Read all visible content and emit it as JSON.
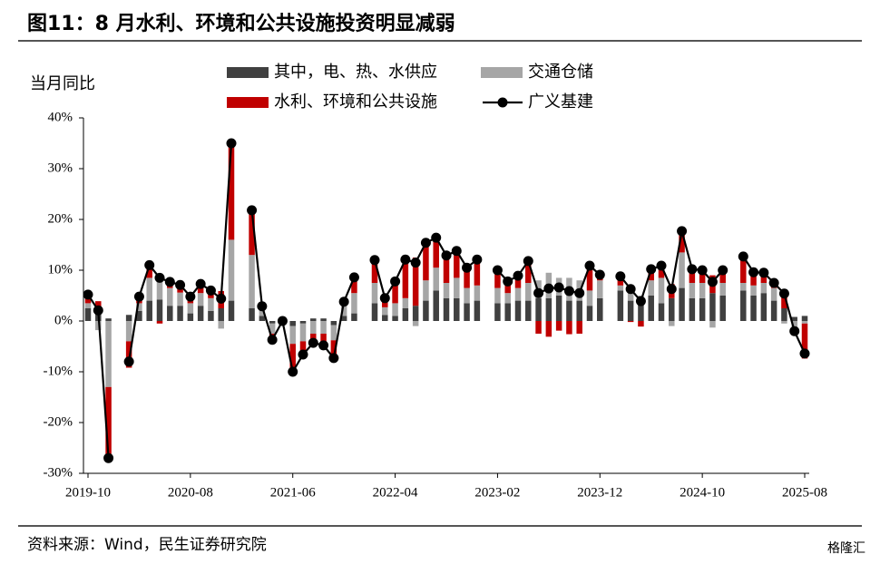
{
  "chart_data": {
    "type": "bar",
    "title": "图11：8 月水利、环境和公共设施投资明显减弱",
    "y_label": "当月同比",
    "source": "资料来源：Wind，民生证券研究院",
    "watermark": "格隆汇",
    "stacked": true,
    "grid": false,
    "categories": [
      "2019-10",
      null,
      null,
      null,
      null,
      null,
      null,
      null,
      null,
      null,
      "2020-08",
      null,
      null,
      null,
      null,
      null,
      null,
      null,
      null,
      null,
      "2021-06",
      null,
      null,
      null,
      null,
      null,
      null,
      null,
      null,
      null,
      "2022-04",
      null,
      null,
      null,
      null,
      null,
      null,
      null,
      null,
      null,
      "2023-02",
      null,
      null,
      null,
      null,
      null,
      null,
      null,
      null,
      null,
      "2023-12",
      null,
      null,
      null,
      null,
      null,
      null,
      null,
      null,
      null,
      "2024-10",
      null,
      null,
      null,
      null,
      null,
      null,
      null,
      null,
      null,
      "2025-08"
    ],
    "ylim": [
      -30,
      40
    ],
    "yticks": [
      {
        "value": -30,
        "label": "-30%"
      },
      {
        "value": -20,
        "label": "-20%"
      },
      {
        "value": -10,
        "label": "-10%"
      },
      {
        "value": 0,
        "label": "0%"
      },
      {
        "value": 10,
        "label": "10%"
      },
      {
        "value": 20,
        "label": "20%"
      },
      {
        "value": 30,
        "label": "30%"
      },
      {
        "value": 40,
        "label": "40%"
      }
    ],
    "series": [
      {
        "name": "其中，电、热、水供应",
        "color": "#404040",
        "type": "bar",
        "values": [
          2.5,
          1.5,
          0.5,
          null,
          1.2,
          2,
          4,
          4.2,
          3,
          3,
          1.5,
          3,
          2,
          2.5,
          4,
          null,
          2.5,
          1,
          -0.5,
          0.5,
          -1,
          -0.5,
          0.5,
          0.5,
          -0.8,
          1,
          1.5,
          null,
          3.5,
          1.2,
          1,
          2.5,
          3,
          4,
          6,
          4.5,
          4.5,
          3.5,
          4,
          null,
          3.5,
          3.5,
          4,
          4,
          4.5,
          4.5,
          5,
          4,
          4,
          3,
          4.5,
          null,
          6,
          4,
          3.5,
          5,
          3.5,
          4.5,
          6.5,
          4.5,
          4.5,
          5.5,
          5,
          null,
          6,
          5,
          5.5,
          4,
          2.5,
          0.8,
          1.0
        ]
      },
      {
        "name": "交通仓储",
        "color": "#a6a6a6",
        "type": "bar",
        "values": [
          1,
          -1.8,
          -13,
          null,
          -4,
          1.5,
          4.5,
          4.8,
          3.5,
          2.6,
          2,
          2.5,
          2.5,
          -1.5,
          12,
          null,
          10.5,
          1.2,
          -2,
          -0.5,
          -3.5,
          -3.5,
          -2.5,
          -2.5,
          -3,
          2,
          4,
          null,
          4,
          1.5,
          2.5,
          2,
          -1,
          4,
          4.5,
          3,
          4,
          3,
          3,
          null,
          3,
          2,
          2.5,
          3.5,
          3.5,
          5,
          3.5,
          4.5,
          4,
          3,
          3.5,
          null,
          1,
          2.5,
          1.5,
          3,
          5,
          -1,
          7,
          3,
          3,
          -1.3,
          2.5,
          null,
          1.5,
          2,
          2,
          2.5,
          -0.5,
          -1.5,
          -0.5
        ]
      },
      {
        "name": "水利、环境和公共设施",
        "color": "#c00000",
        "type": "bar",
        "values": [
          1.7,
          2.4,
          -14.5,
          null,
          -5.2,
          1.3,
          2.5,
          -0.5,
          1.2,
          1.5,
          1.3,
          1.8,
          1.5,
          3.4,
          19,
          null,
          8.8,
          0.7,
          -1.2,
          0,
          -5.5,
          -2.6,
          -2.3,
          -2.8,
          -3.5,
          0.8,
          3.1,
          null,
          4.5,
          1.8,
          4.3,
          7.6,
          9.5,
          7.4,
          5.9,
          5.4,
          5.3,
          4.0,
          5.1,
          null,
          3.5,
          2.3,
          2.4,
          4.3,
          -2.5,
          -3.1,
          -1.9,
          -2.6,
          -2.5,
          4.9,
          1.1,
          null,
          1.8,
          -0.2,
          -1.1,
          2.2,
          2.4,
          2.8,
          4.2,
          2.7,
          2.5,
          3.5,
          2.5,
          null,
          5.2,
          2.6,
          2.0,
          1.0,
          3.4,
          -1.3,
          -6.9
        ]
      },
      {
        "name": "广义基建",
        "color": "#000000",
        "type": "line",
        "values": [
          5.2,
          2.1,
          -27,
          null,
          -8,
          4.8,
          11,
          8.5,
          7.7,
          7.1,
          4.8,
          7.3,
          6,
          4.4,
          35,
          null,
          21.8,
          2.9,
          -3.7,
          0,
          -10,
          -6.6,
          -4.3,
          -4.8,
          -7.3,
          3.8,
          8.6,
          null,
          12,
          4.5,
          7.8,
          12.1,
          11.5,
          15.4,
          16.4,
          12.9,
          13.8,
          10.5,
          12.1,
          null,
          10,
          7.8,
          8.9,
          11.8,
          5.5,
          6.4,
          6.6,
          5.9,
          5.5,
          10.9,
          9.1,
          null,
          8.8,
          6.3,
          3.9,
          10.2,
          10.9,
          6.3,
          17.7,
          10.2,
          10,
          7.7,
          10,
          null,
          12.7,
          9.6,
          9.5,
          7.5,
          5.4,
          -2,
          -6.4
        ]
      }
    ]
  }
}
